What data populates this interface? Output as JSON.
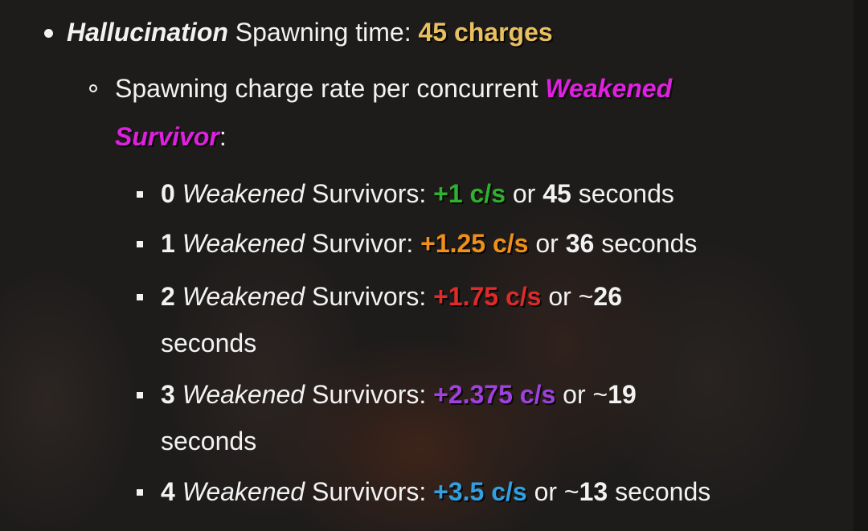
{
  "colors": {
    "gold": "#e8c060",
    "magenta": "#e020e0",
    "green": "#2fb02f",
    "orange": "#f0901a",
    "red": "#e02a2a",
    "purple": "#a040e0",
    "blue": "#30a0e0"
  },
  "item": {
    "term": "Hallucination",
    "label": " Spawning time: ",
    "value": "45 charges",
    "sub": {
      "text": "Spawning charge rate per concurrent ",
      "term1": "Weakened",
      "term2": "Survivor",
      "colon": ":",
      "rates": [
        {
          "count": "0",
          "term": "Weakened",
          "label": " Survivors: ",
          "rate": "+1 c/s",
          "or": " or ",
          "time": "45",
          "unit": " seconds"
        },
        {
          "count": "1",
          "term": "Weakened",
          "label": " Survivor: ",
          "rate": "+1.25 c/s",
          "or": " or ",
          "time": "36",
          "unit": " seconds"
        },
        {
          "count": "2",
          "term": "Weakened",
          "label": " Survivors: ",
          "rate": "+1.75 c/s",
          "or": " or ~",
          "time": "26",
          "unit": "seconds"
        },
        {
          "count": "3",
          "term": "Weakened",
          "label": " Survivors: ",
          "rate": "+2.375 c/s",
          "or": " or ~",
          "time": "19",
          "unit": "seconds"
        },
        {
          "count": "4",
          "term": "Weakened",
          "label": " Survivors: ",
          "rate": "+3.5 c/s",
          "or": " or ~",
          "time": "13",
          "unit": " seconds"
        }
      ]
    }
  }
}
